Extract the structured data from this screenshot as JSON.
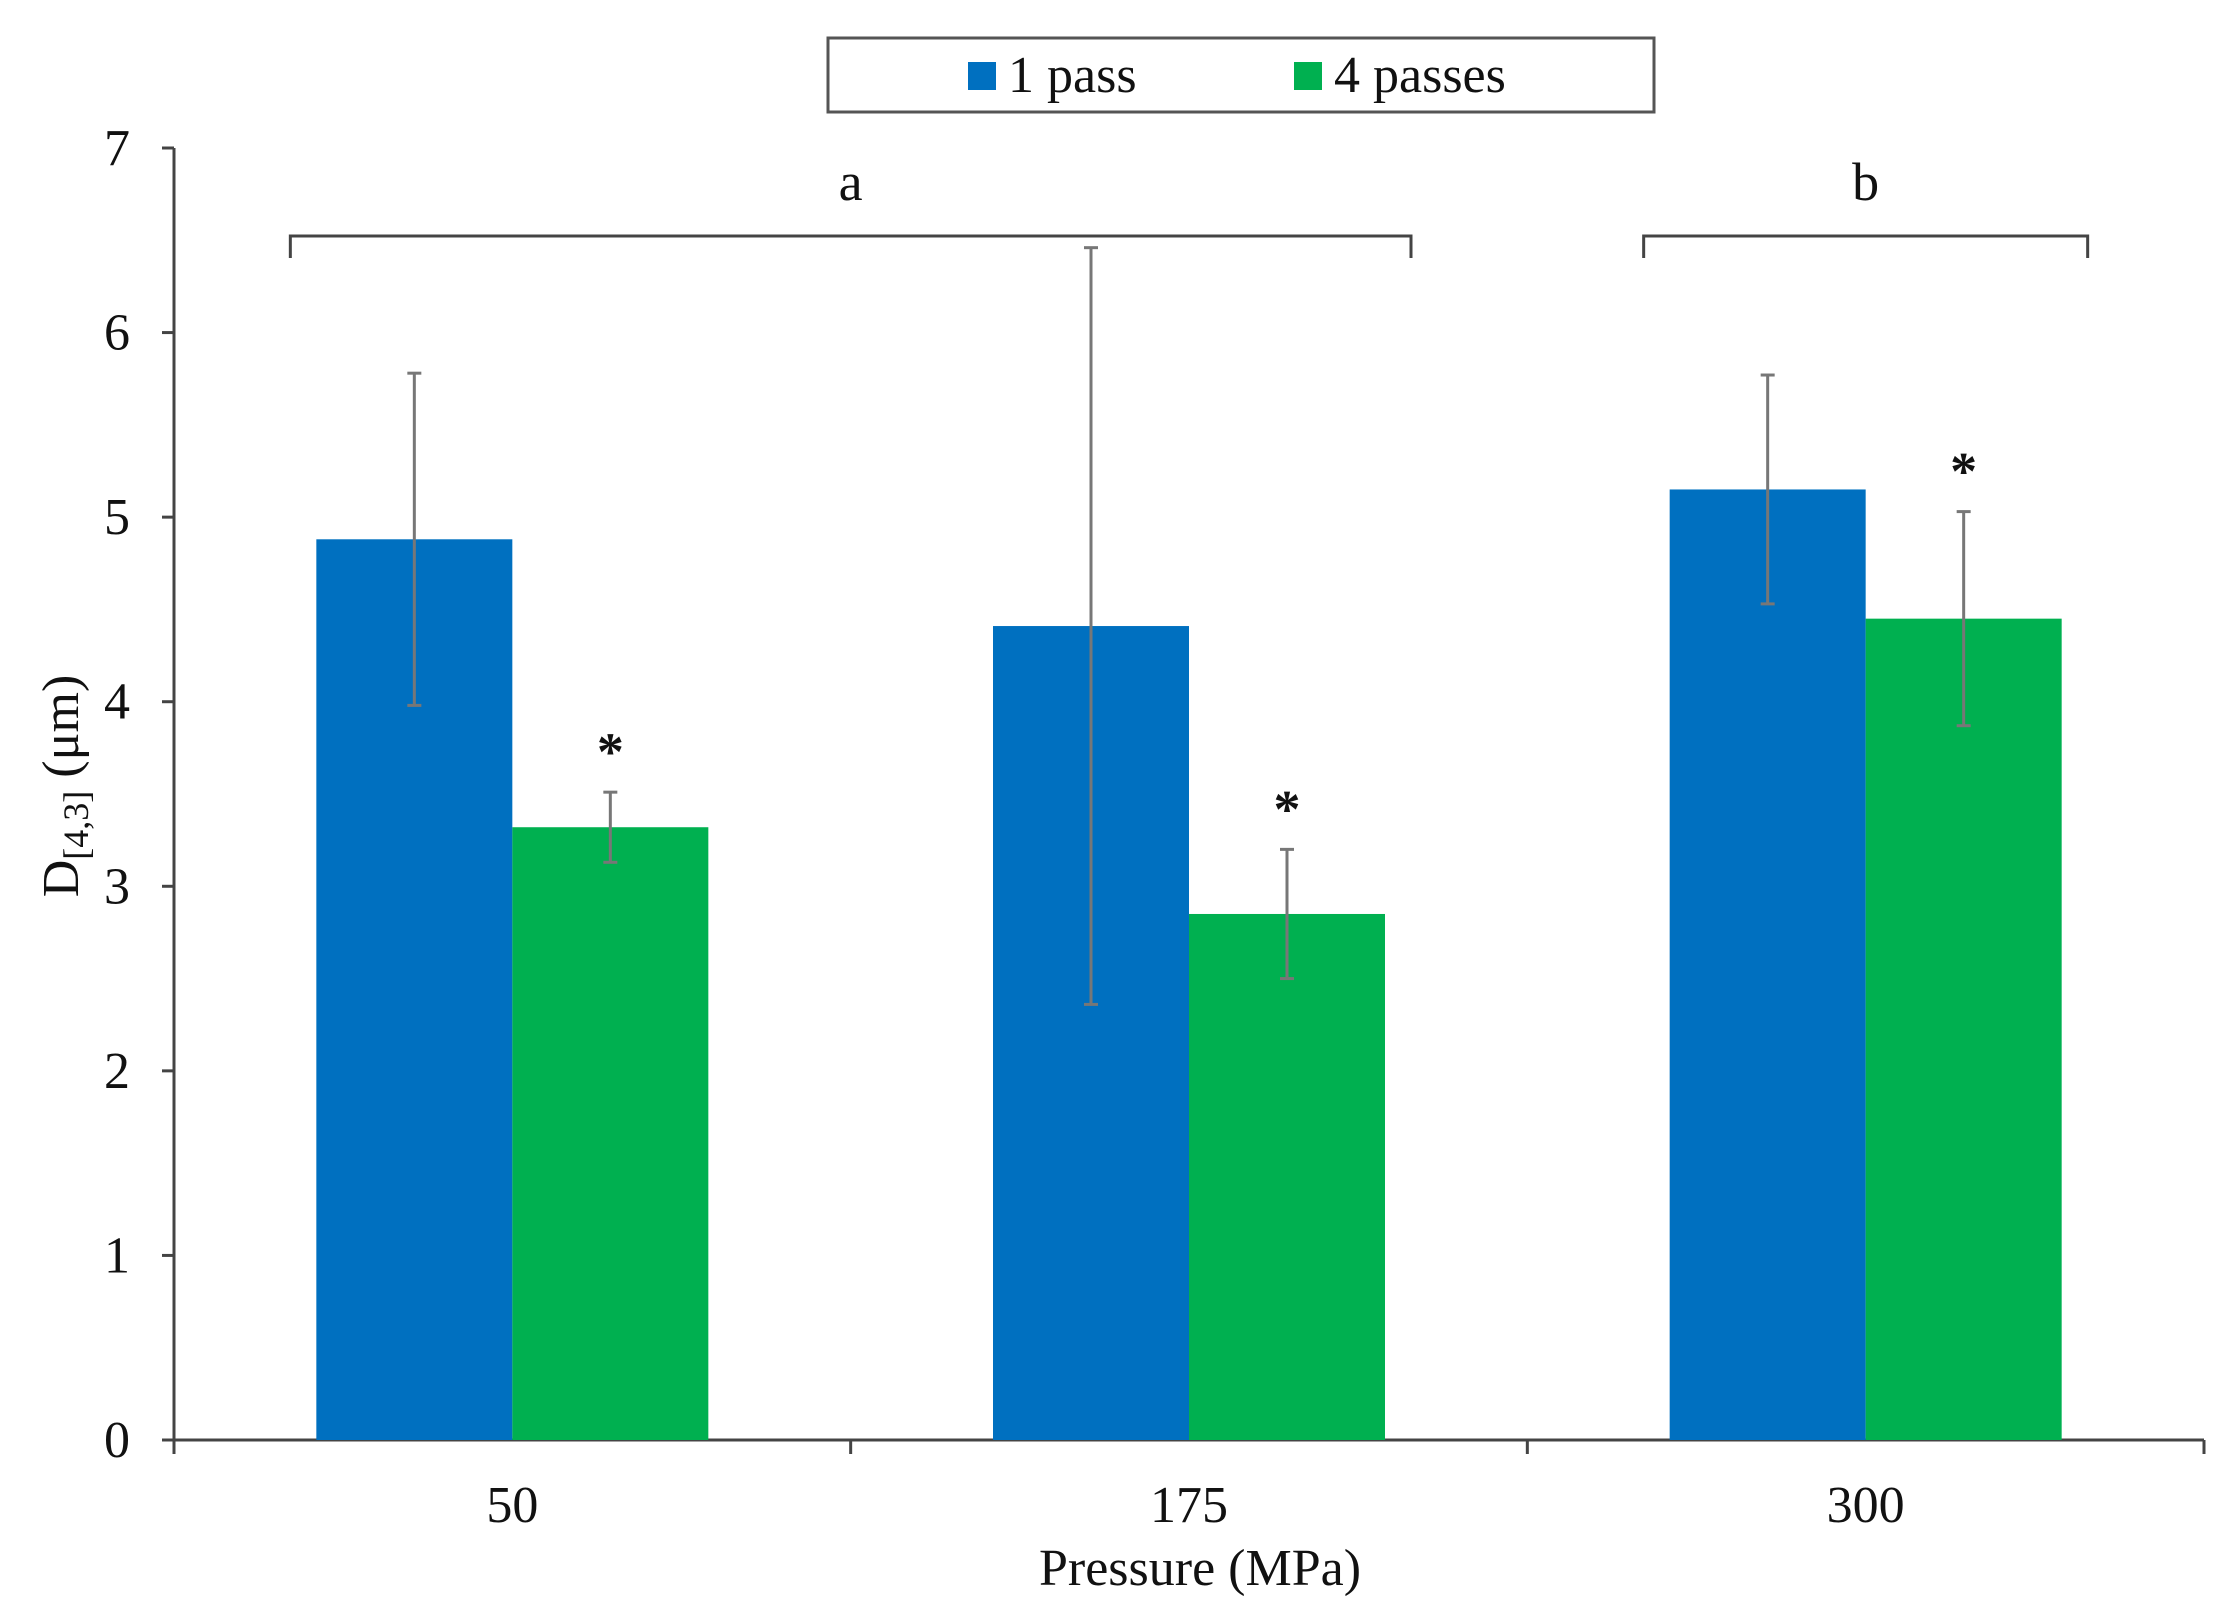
{
  "chart_data": {
    "type": "bar",
    "categories": [
      "50",
      "175",
      "300"
    ],
    "series": [
      {
        "name": "1 pass",
        "color": "#0070C0",
        "values": [
          4.88,
          4.41,
          5.15
        ],
        "error": [
          0.9,
          2.05,
          0.62
        ],
        "markers": [
          "",
          "",
          ""
        ]
      },
      {
        "name": "4 passes",
        "color": "#00B050",
        "values": [
          3.32,
          2.85,
          4.45
        ],
        "error": [
          0.19,
          0.35,
          0.58
        ],
        "markers": [
          "*",
          "*",
          "*"
        ]
      }
    ],
    "xlabel": "Pressure (MPa)",
    "ylabel_main": "D",
    "ylabel_sub": "[4,3]",
    "ylabel_unit": " (μm)",
    "ylim": [
      0,
      7
    ],
    "yticks": [
      "0",
      "1",
      "2",
      "3",
      "4",
      "5",
      "6",
      "7"
    ],
    "legend_position": "top-center",
    "grid": false,
    "brackets": [
      {
        "label": "a",
        "from": "50",
        "to": "175"
      },
      {
        "label": "b",
        "from": "300",
        "to": "300"
      }
    ]
  }
}
